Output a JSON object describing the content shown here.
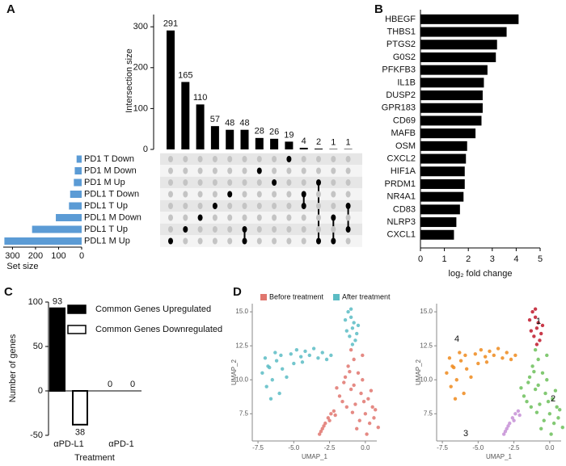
{
  "chart_data": [
    {
      "panel": "A",
      "type": "upset",
      "y_label": "Intersection size",
      "x_label": "Set size",
      "sets": [
        "PD1 T Down",
        "PD1 M Down",
        "PD1 M Up",
        "PDL1 T Down",
        "PDL1 T Up",
        "PDL1 M Down",
        "PDL1 T Up",
        "PDL1 M Up"
      ],
      "set_sizes": [
        22,
        30,
        34,
        50,
        55,
        112,
        215,
        335
      ],
      "intersections": [
        291,
        165,
        110,
        57,
        48,
        48,
        28,
        26,
        19,
        4,
        2,
        1,
        1
      ],
      "membership": [
        [
          0,
          0,
          0,
          0,
          0,
          0,
          0,
          1
        ],
        [
          0,
          0,
          0,
          0,
          0,
          0,
          1,
          0
        ],
        [
          0,
          0,
          0,
          0,
          0,
          1,
          0,
          0
        ],
        [
          0,
          0,
          0,
          0,
          1,
          0,
          0,
          0
        ],
        [
          0,
          0,
          0,
          1,
          0,
          0,
          0,
          0
        ],
        [
          0,
          0,
          0,
          0,
          0,
          0,
          1,
          1
        ],
        [
          0,
          1,
          0,
          0,
          0,
          0,
          0,
          0
        ],
        [
          0,
          0,
          1,
          0,
          0,
          0,
          0,
          0
        ],
        [
          1,
          0,
          0,
          0,
          0,
          0,
          0,
          0
        ],
        [
          0,
          0,
          0,
          1,
          1,
          0,
          0,
          0
        ],
        [
          0,
          0,
          1,
          0,
          0,
          0,
          0,
          1
        ],
        [
          0,
          0,
          0,
          0,
          0,
          1,
          0,
          1
        ],
        [
          0,
          0,
          0,
          0,
          1,
          0,
          1,
          0
        ]
      ],
      "ylim": [
        0,
        330
      ],
      "yticks": [
        0,
        100,
        200,
        300
      ],
      "xlim": [
        0,
        340
      ],
      "xticks": [
        0,
        100,
        200,
        300
      ],
      "color": "#000000",
      "set_color": "#5b9bd5",
      "dot_off_color": "#c4c4c4"
    },
    {
      "panel": "B",
      "type": "barh",
      "x_label": "log₂ fold change",
      "categories": [
        "HBEGF",
        "THBS1",
        "PTGS2",
        "G0S2",
        "PFKFB3",
        "IL1B",
        "DUSP2",
        "GPR183",
        "CD69",
        "MAFB",
        "OSM",
        "CXCL2",
        "HIF1A",
        "PRDM1",
        "NR4A1",
        "CD83",
        "NLRP3",
        "CXCL1"
      ],
      "values": [
        4.1,
        3.6,
        3.2,
        3.15,
        2.8,
        2.65,
        2.6,
        2.6,
        2.55,
        2.3,
        1.95,
        1.9,
        1.85,
        1.85,
        1.8,
        1.65,
        1.5,
        1.4
      ],
      "xlim": [
        0,
        5
      ],
      "xticks": [
        0,
        1,
        2,
        3,
        4,
        5
      ],
      "color": "#000000"
    },
    {
      "panel": "C",
      "type": "bar",
      "y_label": "Number of genes",
      "x_label": "Treatment",
      "categories": [
        "αPD-L1",
        "αPD-1"
      ],
      "series": [
        {
          "name": "Common Genes Upregulated",
          "color": "#000000",
          "values": [
            93,
            0
          ]
        },
        {
          "name": "Common Genes Downregulated",
          "color": "#ffffff",
          "values": [
            -38,
            0
          ],
          "value_labels": [
            "38",
            "0"
          ]
        }
      ],
      "ylim": [
        -50,
        100
      ],
      "yticks": [
        -50,
        0,
        50,
        100
      ]
    },
    {
      "panel": "D",
      "type": "scatter",
      "legend": "top",
      "x_label": "UMAP_1",
      "y_label": "UMAP_2",
      "series": [
        {
          "name": "Before treatment",
          "color": "#e0766e",
          "x": [
            -1.0,
            -0.8,
            -1.2,
            -0.5,
            -0.2,
            -1.5,
            -1.0,
            -0.3,
            0.2,
            0.5,
            -0.7,
            -1.8,
            -1.3,
            0.0,
            0.6,
            0.9,
            -0.4,
            -2.0,
            -1.6,
            -0.9,
            0.3,
            -0.6,
            0.1,
            -1.1,
            -0.2,
            0.7,
            -1.4,
            -0.8,
            0.4,
            -0.1,
            -3.2,
            -3.0,
            -2.8,
            -2.6,
            -2.4,
            -2.2,
            -3.1,
            -2.9,
            -2.5,
            -2.1
          ],
          "y": [
            12.2,
            11.5,
            11.0,
            10.5,
            10.0,
            9.8,
            9.3,
            9.0,
            8.6,
            8.0,
            8.2,
            8.8,
            8.0,
            7.5,
            7.2,
            6.5,
            7.0,
            9.4,
            8.4,
            7.6,
            6.8,
            6.4,
            6.0,
            10.6,
            11.8,
            7.8,
            10.2,
            9.6,
            9.2,
            8.4,
            6.0,
            6.4,
            6.8,
            7.2,
            7.5,
            7.7,
            6.2,
            6.6,
            7.0,
            7.4
          ]
        },
        {
          "name": "After treatment",
          "color": "#5bbcc4",
          "x": [
            -1.2,
            -1.0,
            -0.8,
            -1.4,
            -0.9,
            -0.6,
            -1.1,
            -0.7,
            -1.3,
            -0.9,
            -0.5,
            -1.0,
            -7.2,
            -6.8,
            -6.5,
            -6.9,
            -6.2,
            -5.8,
            -6.0,
            -6.6,
            -7.0,
            -5.5,
            -5.9,
            -6.3,
            -6.7,
            -5.2,
            -4.8,
            -4.5,
            -4.2,
            -3.9,
            -3.6,
            -3.3,
            -3.0,
            -2.7,
            -2.4,
            -4.4,
            -5.0
          ],
          "y": [
            15.0,
            14.6,
            14.2,
            14.4,
            13.8,
            13.4,
            13.2,
            12.9,
            13.6,
            12.6,
            14.0,
            15.2,
            10.5,
            11.0,
            10.0,
            9.5,
            11.4,
            10.8,
            9.0,
            8.6,
            11.6,
            10.2,
            11.8,
            12.0,
            10.9,
            11.9,
            12.2,
            11.7,
            12.1,
            11.8,
            12.3,
            11.6,
            12.0,
            11.5,
            11.8,
            11.3,
            11.2
          ]
        }
      ],
      "xlim": [
        -7.9,
        0.8
      ],
      "xticks": [
        {
          "value": -7.5,
          "label": "-7.5"
        },
        {
          "value": -5,
          "label": "-5.0"
        },
        {
          "value": -2.5,
          "label": "-2.5"
        },
        {
          "value": 0,
          "label": "0.0"
        }
      ],
      "ylim": [
        5.5,
        15.6
      ],
      "yticks": [
        7.5,
        {
          "value": 10,
          "label": "10.0"
        },
        12.5,
        {
          "value": 15,
          "label": "15.0"
        }
      ]
    },
    {
      "type": "scatter",
      "legend": "on-plot",
      "x_label": "UMAP_1",
      "y_label": "UMAP_2",
      "series": [
        {
          "name": "1",
          "color": "#c0182a",
          "x": [
            -1.2,
            -1.0,
            -0.8,
            -1.4,
            -0.9,
            -0.6,
            -1.1,
            -0.7,
            -1.3,
            -0.9,
            -0.5,
            -1.0
          ],
          "y": [
            15.0,
            14.6,
            14.2,
            14.4,
            13.8,
            13.4,
            13.2,
            12.9,
            13.6,
            12.6,
            14.0,
            15.2
          ]
        },
        {
          "name": "2",
          "color": "#6cbf5a",
          "x": [
            -1.0,
            -0.8,
            -1.2,
            -0.5,
            -0.2,
            -1.5,
            -1.0,
            -0.3,
            0.2,
            0.5,
            -0.7,
            -1.8,
            -1.3,
            0.0,
            0.6,
            0.9,
            -0.4,
            -2.0,
            -1.6,
            -0.9,
            0.3,
            -0.6,
            0.1,
            -1.1,
            -0.2,
            0.7,
            -1.4,
            -0.8,
            0.4,
            -0.1
          ],
          "y": [
            12.2,
            11.5,
            11.0,
            10.5,
            10.0,
            9.8,
            9.3,
            9.0,
            8.6,
            8.0,
            8.2,
            8.8,
            8.0,
            7.5,
            7.2,
            6.5,
            7.0,
            9.4,
            8.4,
            7.6,
            6.8,
            6.4,
            6.0,
            10.6,
            11.8,
            7.8,
            10.2,
            9.6,
            9.2,
            8.4
          ]
        },
        {
          "name": "3",
          "color": "#c58fd6",
          "x": [
            -3.2,
            -3.0,
            -2.8,
            -2.6,
            -2.4,
            -2.2,
            -3.1,
            -2.9,
            -2.5,
            -2.1
          ],
          "y": [
            6.0,
            6.4,
            6.8,
            7.2,
            7.5,
            7.7,
            6.2,
            6.6,
            7.0,
            7.4
          ]
        },
        {
          "name": "4",
          "color": "#ef8a1c",
          "x": [
            -7.2,
            -6.8,
            -6.5,
            -6.9,
            -6.2,
            -5.8,
            -6.0,
            -6.6,
            -7.0,
            -5.5,
            -5.9,
            -6.3,
            -6.7,
            -5.2,
            -4.8,
            -4.5,
            -4.2,
            -3.9,
            -3.6,
            -3.3,
            -3.0,
            -2.7,
            -2.4,
            -4.4,
            -5.0
          ],
          "y": [
            10.5,
            11.0,
            10.0,
            9.5,
            11.4,
            10.8,
            9.0,
            8.6,
            11.6,
            10.2,
            11.8,
            12.0,
            10.9,
            11.9,
            12.2,
            11.7,
            12.1,
            11.8,
            12.3,
            11.6,
            12.0,
            11.5,
            11.8,
            11.3,
            11.2
          ]
        }
      ],
      "xlim": [
        -7.9,
        0.8
      ],
      "xticks": [
        {
          "value": -7.5,
          "label": "-7.5"
        },
        {
          "value": -5,
          "label": "-5.0"
        },
        {
          "value": -2.5,
          "label": "-2.5"
        },
        {
          "value": 0,
          "label": "0.0"
        }
      ],
      "ylim": [
        5.5,
        15.6
      ],
      "yticks": [
        7.5,
        {
          "value": 10,
          "label": "10.0"
        },
        12.5,
        {
          "value": 15,
          "label": "15.0"
        }
      ]
    }
  ]
}
